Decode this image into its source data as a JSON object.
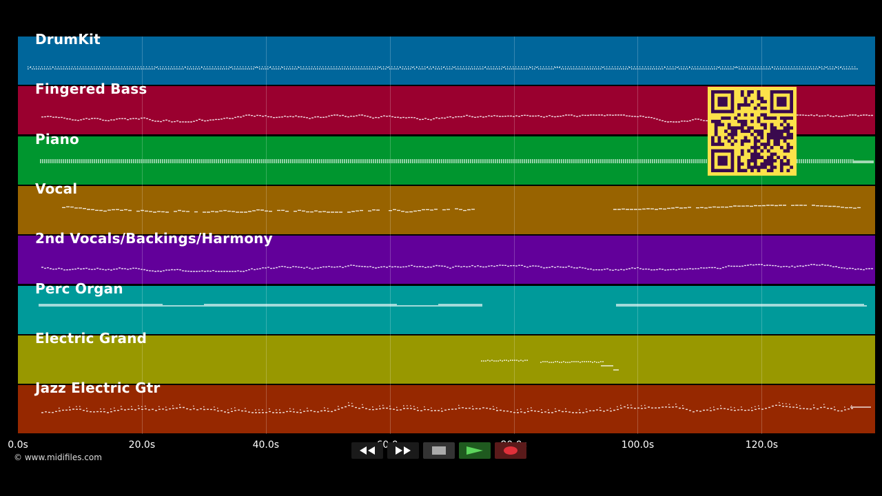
{
  "tracks": [
    {
      "name": "DrumKit",
      "color": "#00669b",
      "pattern": "drum"
    },
    {
      "name": "Fingered Bass",
      "color": "#9a002f",
      "pattern": "wave"
    },
    {
      "name": "Piano",
      "color": "#00962f",
      "pattern": "piano"
    },
    {
      "name": "Vocal",
      "color": "#986300",
      "pattern": "vocal"
    },
    {
      "name": "2nd Vocals/Backings/Harmony",
      "color": "#62009a",
      "pattern": "wave"
    },
    {
      "name": "Perc Organ",
      "color": "#009a9a",
      "pattern": "organ"
    },
    {
      "name": "Electric Grand",
      "color": "#989800",
      "pattern": "grand"
    },
    {
      "name": "Jazz Electric Gtr",
      "color": "#962800",
      "pattern": "guitar"
    }
  ],
  "timeline": {
    "ticks": [
      "0.0s",
      "20.0s",
      "40.0s",
      "60.0s",
      "80.0s",
      "100.0s",
      "120.0s"
    ],
    "max_seconds": 138.3
  },
  "copyright": "© www.midifiles.com",
  "transport": {
    "buttons": [
      {
        "name": "rewind-button",
        "icon": "rewind-icon",
        "bg": "#1a1a1a"
      },
      {
        "name": "fast-forward-button",
        "icon": "fast-forward-icon",
        "bg": "#1a1a1a"
      },
      {
        "name": "stop-button",
        "icon": "stop-icon",
        "bg": "#333333"
      },
      {
        "name": "play-button",
        "icon": "play-icon",
        "bg": "#1f5a1f"
      },
      {
        "name": "record-button",
        "icon": "record-icon",
        "bg": "#5a1a1a"
      }
    ]
  },
  "colors": {
    "qr_background": "#fce24a",
    "qr_modules": "#3a0a4e"
  }
}
